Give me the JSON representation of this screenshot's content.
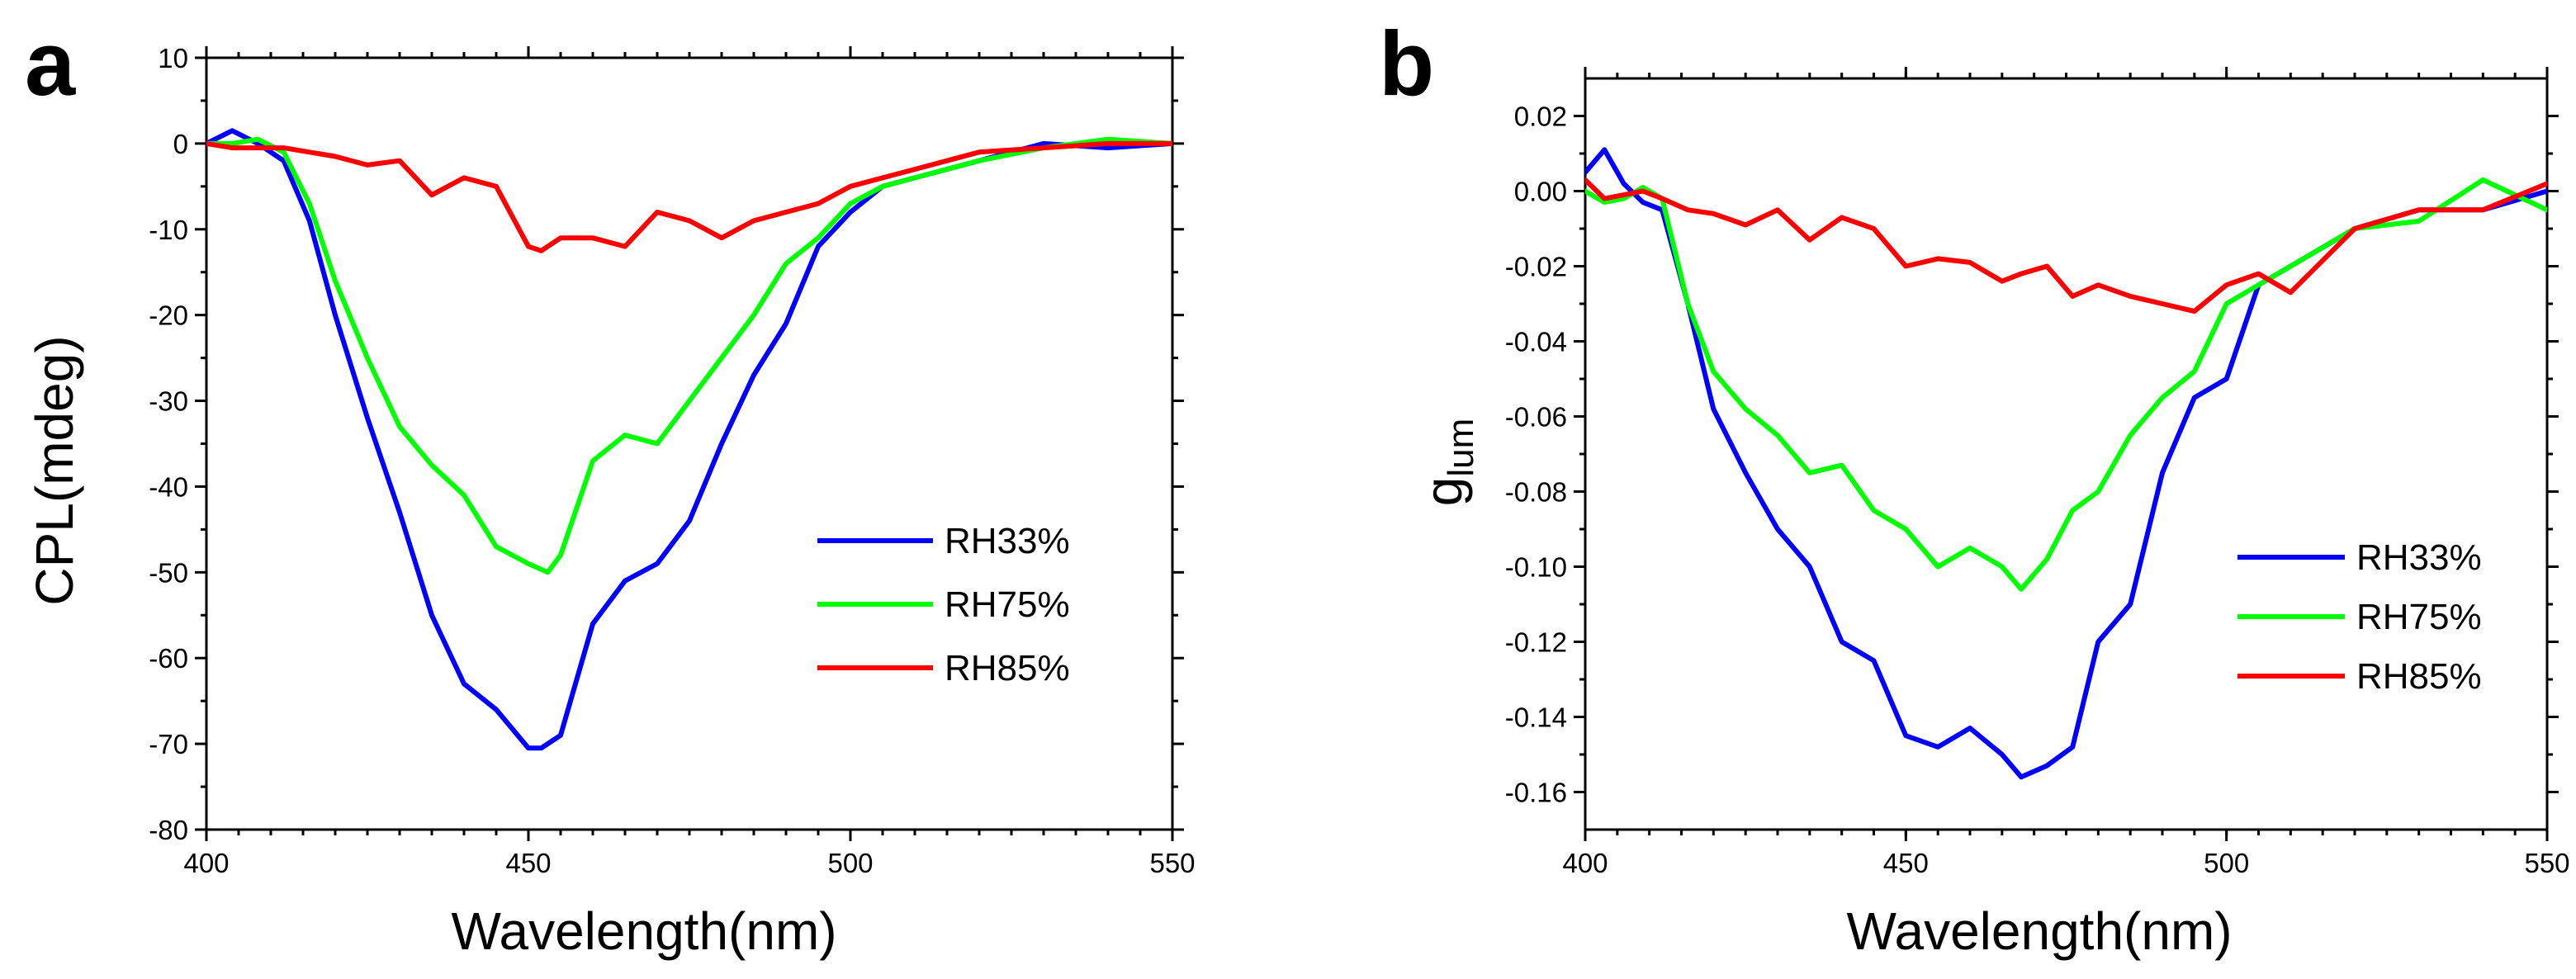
{
  "panels": [
    {
      "label": "a",
      "ylabel": "CPL(mdeg)",
      "xlabel": "Wavelength(nm)"
    },
    {
      "label": "b",
      "ylabel_main": "g",
      "ylabel_sub": "lum",
      "xlabel": "Wavelength(nm)"
    }
  ],
  "chart_data": [
    {
      "type": "line",
      "title": "",
      "xlabel": "Wavelength(nm)",
      "ylabel": "CPL(mdeg)",
      "xlim": [
        400,
        550
      ],
      "ylim": [
        -80,
        10
      ],
      "xticks": [
        400,
        450,
        500,
        550
      ],
      "xtick_labels": [
        "400",
        "450",
        "500",
        "550"
      ],
      "yticks": [
        10,
        0,
        -10,
        -20,
        -30,
        -40,
        -50,
        -60,
        -70,
        -80
      ],
      "ytick_labels": [
        "10",
        "0",
        "-10",
        "-20",
        "-30",
        "-40",
        "-50",
        "-60",
        "-70",
        "-80"
      ],
      "legend_position": "center-right",
      "series": [
        {
          "name": "RH33%",
          "color": "#0000ff",
          "x": [
            400,
            404,
            408,
            412,
            416,
            420,
            425,
            430,
            435,
            440,
            445,
            450,
            452,
            455,
            460,
            465,
            470,
            475,
            480,
            485,
            490,
            495,
            500,
            505,
            510,
            520,
            530,
            540,
            550
          ],
          "y": [
            0,
            1.5,
            0,
            -2,
            -9,
            -20,
            -32,
            -43,
            -55,
            -63,
            -66,
            -70.5,
            -70.5,
            -69,
            -56,
            -51,
            -49,
            -44,
            -35,
            -27,
            -21,
            -12,
            -8,
            -5,
            -4,
            -2,
            0,
            -0.5,
            0
          ]
        },
        {
          "name": "RH75%",
          "color": "#00ff00",
          "x": [
            400,
            404,
            408,
            412,
            416,
            420,
            425,
            430,
            435,
            440,
            445,
            450,
            453,
            455,
            460,
            465,
            470,
            475,
            480,
            485,
            490,
            495,
            500,
            505,
            510,
            520,
            530,
            540,
            550
          ],
          "y": [
            0,
            0,
            0.5,
            -1,
            -7,
            -16,
            -25,
            -33,
            -37.5,
            -41,
            -47,
            -49,
            -50,
            -48,
            -37,
            -34,
            -35,
            -30,
            -25,
            -20,
            -14,
            -11,
            -7,
            -5,
            -4,
            -2,
            -0.5,
            0.5,
            0
          ]
        },
        {
          "name": "RH85%",
          "color": "#ff0000",
          "x": [
            400,
            404,
            408,
            412,
            416,
            420,
            425,
            430,
            435,
            440,
            445,
            450,
            452,
            455,
            460,
            465,
            470,
            475,
            480,
            485,
            490,
            495,
            500,
            505,
            510,
            520,
            530,
            540,
            550
          ],
          "y": [
            0,
            -0.5,
            -0.5,
            -0.5,
            -1,
            -1.5,
            -2.5,
            -2,
            -6,
            -4,
            -5,
            -12,
            -12.5,
            -11,
            -11,
            -12,
            -8,
            -9,
            -11,
            -9,
            -8,
            -7,
            -5,
            -4,
            -3,
            -1,
            -0.5,
            0,
            0
          ]
        }
      ]
    },
    {
      "type": "line",
      "title": "",
      "xlabel": "Wavelength(nm)",
      "ylabel": "g_lum",
      "xlim": [
        400,
        550
      ],
      "ylim": [
        -0.17,
        0.03
      ],
      "xticks": [
        400,
        450,
        500,
        550
      ],
      "xtick_labels": [
        "400",
        "450",
        "500",
        "550"
      ],
      "yticks": [
        0.02,
        0.0,
        -0.02,
        -0.04,
        -0.06,
        -0.08,
        -0.1,
        -0.12,
        -0.14,
        -0.16
      ],
      "ytick_labels": [
        "0.02",
        "0.00",
        "-0.02",
        "-0.04",
        "-0.06",
        "-0.08",
        "-0.10",
        "-0.12",
        "-0.14",
        "-0.16"
      ],
      "legend_position": "center-right",
      "series": [
        {
          "name": "RH33%",
          "color": "#0000ff",
          "x": [
            400,
            403,
            406,
            409,
            412,
            416,
            420,
            425,
            430,
            435,
            440,
            445,
            450,
            455,
            460,
            465,
            468,
            472,
            476,
            480,
            485,
            490,
            495,
            500,
            505,
            510,
            520,
            530,
            540,
            550
          ],
          "y": [
            0.005,
            0.011,
            0.002,
            -0.003,
            -0.005,
            -0.03,
            -0.058,
            -0.075,
            -0.09,
            -0.1,
            -0.12,
            -0.125,
            -0.145,
            -0.148,
            -0.143,
            -0.15,
            -0.156,
            -0.153,
            -0.148,
            -0.12,
            -0.11,
            -0.075,
            -0.055,
            -0.05,
            -0.025,
            -0.02,
            -0.01,
            -0.005,
            -0.005,
            0.0
          ]
        },
        {
          "name": "RH75%",
          "color": "#00ff00",
          "x": [
            400,
            403,
            406,
            409,
            412,
            416,
            420,
            425,
            430,
            435,
            440,
            445,
            450,
            455,
            460,
            465,
            468,
            472,
            476,
            480,
            485,
            490,
            495,
            500,
            505,
            510,
            520,
            530,
            540,
            550
          ],
          "y": [
            0.0,
            -0.003,
            -0.002,
            0.001,
            -0.002,
            -0.03,
            -0.048,
            -0.058,
            -0.065,
            -0.075,
            -0.073,
            -0.085,
            -0.09,
            -0.1,
            -0.095,
            -0.1,
            -0.106,
            -0.098,
            -0.085,
            -0.08,
            -0.065,
            -0.055,
            -0.048,
            -0.03,
            -0.025,
            -0.02,
            -0.01,
            -0.008,
            0.003,
            -0.005
          ]
        },
        {
          "name": "RH85%",
          "color": "#ff0000",
          "x": [
            400,
            403,
            406,
            409,
            412,
            416,
            420,
            425,
            430,
            435,
            440,
            445,
            450,
            455,
            460,
            465,
            468,
            472,
            476,
            480,
            485,
            490,
            495,
            500,
            505,
            510,
            520,
            530,
            540,
            550
          ],
          "y": [
            0.003,
            -0.002,
            -0.001,
            0.0,
            -0.002,
            -0.005,
            -0.006,
            -0.009,
            -0.005,
            -0.013,
            -0.007,
            -0.01,
            -0.02,
            -0.018,
            -0.019,
            -0.024,
            -0.022,
            -0.02,
            -0.028,
            -0.025,
            -0.028,
            -0.03,
            -0.032,
            -0.025,
            -0.022,
            -0.027,
            -0.01,
            -0.005,
            -0.005,
            0.002
          ]
        }
      ]
    }
  ]
}
